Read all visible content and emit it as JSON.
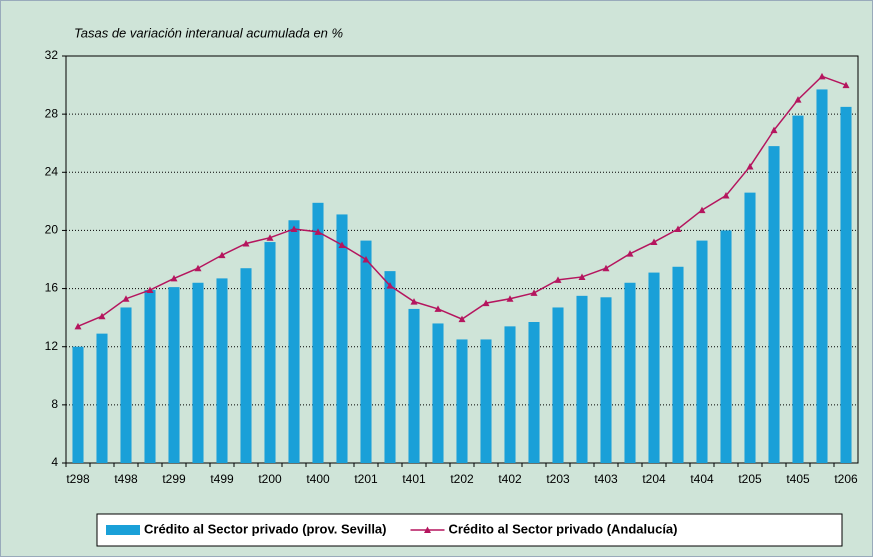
{
  "chart_data": {
    "type": "bar_line",
    "subtitle": "Tasas de variación interanual acumulada en %",
    "categories": [
      "t298",
      null,
      "t498",
      null,
      "t299",
      null,
      "t499",
      null,
      "t200",
      null,
      "t400",
      null,
      "t201",
      null,
      "t401",
      null,
      "t202",
      null,
      "t402",
      null,
      "t203",
      null,
      "t403",
      null,
      "t204",
      null,
      "t404",
      null,
      "t205",
      null,
      "t405",
      null,
      "t206"
    ],
    "series": [
      {
        "name": "Crédito al Sector privado (prov. Sevilla)",
        "type": "bar",
        "color": "#1aa0d8",
        "values": [
          12.0,
          12.9,
          14.7,
          15.9,
          16.1,
          16.4,
          16.7,
          17.4,
          19.2,
          20.7,
          21.9,
          21.1,
          19.3,
          17.2,
          14.6,
          13.6,
          12.5,
          12.5,
          13.4,
          13.7,
          14.7,
          15.5,
          15.4,
          16.4,
          17.1,
          17.5,
          19.3,
          20.0,
          22.6,
          25.8,
          27.9,
          29.7,
          28.5
        ]
      },
      {
        "name": "Crédito al Sector privado (Andalucía)",
        "type": "line",
        "color": "#b5155e",
        "values": [
          13.4,
          14.1,
          15.3,
          15.9,
          16.7,
          17.4,
          18.3,
          19.1,
          19.5,
          20.1,
          19.9,
          19.0,
          18.0,
          16.2,
          15.1,
          14.6,
          13.9,
          15.0,
          15.3,
          15.7,
          16.6,
          16.8,
          17.4,
          18.4,
          19.2,
          20.1,
          21.4,
          22.4,
          24.4,
          26.9,
          29.0,
          30.6,
          30.0
        ]
      }
    ],
    "ylim": [
      4,
      32
    ],
    "yticks": [
      4,
      8,
      12,
      16,
      20,
      24,
      28,
      32
    ],
    "grid": true,
    "legend": "bottom"
  }
}
